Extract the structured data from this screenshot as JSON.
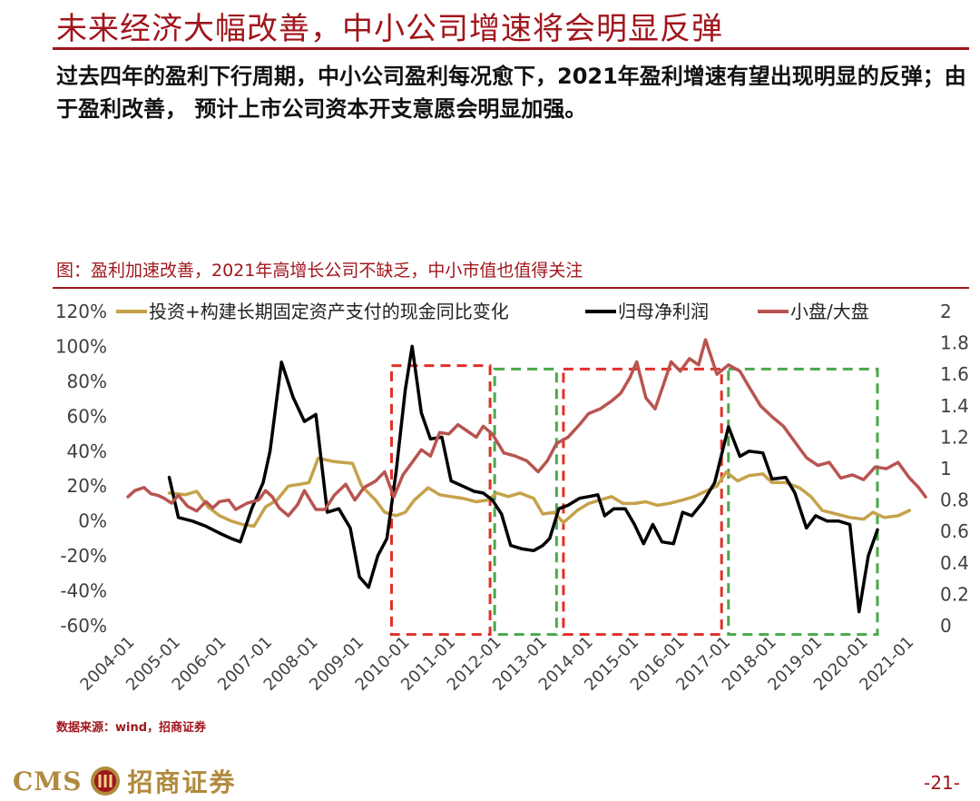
{
  "header": {
    "title": "未来经济大幅改善，中小公司增速将会明显反弹",
    "subtitle": "过去四年的盈利下行周期，中小公司盈利每况愈下，2021年盈利增速有望出现明显的反弹；由于盈利改善， 预计上市公司资本开支意愿会明显加强。"
  },
  "figure": {
    "title": "图：盈利加速改善，2021年高增长公司不缺乏，中小市值也值得关注"
  },
  "source": "数据来源：wind，招商证券",
  "footer": {
    "brand_latin": "CMS",
    "brand_name": "招商证券",
    "page": "-21-"
  },
  "colors": {
    "capex": "#c5a24a",
    "profit": "#000000",
    "ratio": "#b85450",
    "red_box": "#e03127",
    "green_box": "#4aa84a",
    "accent": "#a0161c"
  },
  "chart_data": {
    "type": "line",
    "x": [
      "2004-01",
      "2005-01",
      "2006-01",
      "2007-01",
      "2008-01",
      "2009-01",
      "2010-01",
      "2011-01",
      "2012-01",
      "2013-01",
      "2014-01",
      "2015-01",
      "2016-01",
      "2017-01",
      "2018-01",
      "2019-01",
      "2020-01",
      "2021-01"
    ],
    "y_left": {
      "range": [
        -60,
        120
      ],
      "ticks": [
        "120%",
        "100%",
        "80%",
        "60%",
        "40%",
        "20%",
        "0%",
        "-20%",
        "-40%",
        "-60%"
      ]
    },
    "y_right": {
      "range": [
        0,
        2
      ],
      "ticks": [
        "2",
        "1.8",
        "1.6",
        "1.4",
        "1.2",
        "1",
        "0.8",
        "0.6",
        "0.4",
        "0.2",
        "0"
      ]
    },
    "legend_position": "top",
    "series": [
      {
        "name": "投资+构建长期固定资产支付的现金同比变化",
        "axis": "left",
        "color": "#c5a24a",
        "points": [
          [
            2004.9,
            16
          ],
          [
            2005.25,
            15
          ],
          [
            2005.5,
            17
          ],
          [
            2005.75,
            8
          ],
          [
            2006.0,
            3
          ],
          [
            2006.25,
            0
          ],
          [
            2006.5,
            -2
          ],
          [
            2006.75,
            -3
          ],
          [
            2007.0,
            8
          ],
          [
            2007.25,
            12
          ],
          [
            2007.5,
            20
          ],
          [
            2007.75,
            21
          ],
          [
            2007.95,
            22
          ],
          [
            2008.15,
            36
          ],
          [
            2008.5,
            34
          ],
          [
            2008.9,
            33
          ],
          [
            2009.1,
            20
          ],
          [
            2009.4,
            12
          ],
          [
            2009.6,
            5
          ],
          [
            2009.85,
            3
          ],
          [
            2010.05,
            5
          ],
          [
            2010.25,
            12
          ],
          [
            2010.55,
            19
          ],
          [
            2010.8,
            15
          ],
          [
            2011.05,
            14
          ],
          [
            2011.3,
            13
          ],
          [
            2011.6,
            11
          ],
          [
            2011.85,
            12
          ],
          [
            2012.05,
            16
          ],
          [
            2012.3,
            14
          ],
          [
            2012.55,
            16
          ],
          [
            2012.85,
            13
          ],
          [
            2013.05,
            4
          ],
          [
            2013.3,
            5
          ],
          [
            2013.5,
            -1
          ],
          [
            2013.8,
            6
          ],
          [
            2014.05,
            10
          ],
          [
            2014.3,
            12
          ],
          [
            2014.55,
            14
          ],
          [
            2014.8,
            10
          ],
          [
            2015.05,
            10
          ],
          [
            2015.3,
            11
          ],
          [
            2015.55,
            9
          ],
          [
            2015.8,
            10
          ],
          [
            2016.1,
            12
          ],
          [
            2016.35,
            14
          ],
          [
            2016.6,
            17
          ],
          [
            2016.85,
            20
          ],
          [
            2017.05,
            28
          ],
          [
            2017.3,
            23
          ],
          [
            2017.55,
            26
          ],
          [
            2017.85,
            27
          ],
          [
            2018.05,
            22
          ],
          [
            2018.35,
            22
          ],
          [
            2018.65,
            19
          ],
          [
            2018.9,
            14
          ],
          [
            2019.15,
            6
          ],
          [
            2019.45,
            4
          ],
          [
            2019.75,
            2
          ],
          [
            2020.05,
            1
          ],
          [
            2020.25,
            5
          ],
          [
            2020.5,
            2
          ],
          [
            2020.8,
            3
          ],
          [
            2021.05,
            6
          ]
        ]
      },
      {
        "name": "归母净利润",
        "axis": "left",
        "color": "#000000",
        "points": [
          [
            2004.9,
            25
          ],
          [
            2005.1,
            2
          ],
          [
            2005.4,
            0
          ],
          [
            2005.7,
            -3
          ],
          [
            2006.0,
            -7
          ],
          [
            2006.25,
            -10
          ],
          [
            2006.45,
            -12
          ],
          [
            2006.7,
            7
          ],
          [
            2006.95,
            22
          ],
          [
            2007.1,
            40
          ],
          [
            2007.35,
            91
          ],
          [
            2007.6,
            71
          ],
          [
            2007.85,
            57
          ],
          [
            2008.1,
            61
          ],
          [
            2008.35,
            5
          ],
          [
            2008.6,
            7
          ],
          [
            2008.85,
            -4
          ],
          [
            2009.05,
            -32
          ],
          [
            2009.25,
            -38
          ],
          [
            2009.45,
            -20
          ],
          [
            2009.65,
            -10
          ],
          [
            2009.85,
            28
          ],
          [
            2010.05,
            75
          ],
          [
            2010.2,
            100
          ],
          [
            2010.4,
            62
          ],
          [
            2010.6,
            47
          ],
          [
            2010.85,
            48
          ],
          [
            2011.05,
            23
          ],
          [
            2011.3,
            20
          ],
          [
            2011.55,
            17
          ],
          [
            2011.75,
            16
          ],
          [
            2011.95,
            12
          ],
          [
            2012.15,
            4
          ],
          [
            2012.35,
            -14
          ],
          [
            2012.6,
            -16
          ],
          [
            2012.85,
            -17
          ],
          [
            2013.05,
            -14
          ],
          [
            2013.2,
            -10
          ],
          [
            2013.4,
            7
          ],
          [
            2013.6,
            9
          ],
          [
            2013.85,
            13
          ],
          [
            2014.05,
            14
          ],
          [
            2014.25,
            15
          ],
          [
            2014.4,
            3
          ],
          [
            2014.6,
            7
          ],
          [
            2014.85,
            7
          ],
          [
            2015.05,
            -2
          ],
          [
            2015.25,
            -13
          ],
          [
            2015.45,
            -2
          ],
          [
            2015.65,
            -12
          ],
          [
            2015.9,
            -13
          ],
          [
            2016.1,
            5
          ],
          [
            2016.3,
            3
          ],
          [
            2016.55,
            11
          ],
          [
            2016.8,
            22
          ],
          [
            2017.1,
            54
          ],
          [
            2017.35,
            37
          ],
          [
            2017.55,
            40
          ],
          [
            2017.85,
            39
          ],
          [
            2018.05,
            24
          ],
          [
            2018.35,
            25
          ],
          [
            2018.55,
            16
          ],
          [
            2018.8,
            -4
          ],
          [
            2019.0,
            3
          ],
          [
            2019.25,
            0
          ],
          [
            2019.5,
            0
          ],
          [
            2019.75,
            -2
          ],
          [
            2019.95,
            -52
          ],
          [
            2020.15,
            -20
          ],
          [
            2020.35,
            -5
          ]
        ]
      },
      {
        "name": "小盘/大盘",
        "axis": "right",
        "color": "#b85450",
        "points": [
          [
            2004.0,
            0.82
          ],
          [
            2004.15,
            0.86
          ],
          [
            2004.35,
            0.88
          ],
          [
            2004.5,
            0.84
          ],
          [
            2004.65,
            0.83
          ],
          [
            2004.8,
            0.81
          ],
          [
            2004.95,
            0.78
          ],
          [
            2005.1,
            0.83
          ],
          [
            2005.3,
            0.76
          ],
          [
            2005.5,
            0.73
          ],
          [
            2005.7,
            0.79
          ],
          [
            2005.85,
            0.75
          ],
          [
            2006.0,
            0.79
          ],
          [
            2006.2,
            0.8
          ],
          [
            2006.35,
            0.74
          ],
          [
            2006.6,
            0.78
          ],
          [
            2006.85,
            0.8
          ],
          [
            2007.0,
            0.86
          ],
          [
            2007.15,
            0.82
          ],
          [
            2007.3,
            0.75
          ],
          [
            2007.5,
            0.7
          ],
          [
            2007.7,
            0.77
          ],
          [
            2007.85,
            0.86
          ],
          [
            2008.1,
            0.74
          ],
          [
            2008.3,
            0.74
          ],
          [
            2008.5,
            0.83
          ],
          [
            2008.75,
            0.9
          ],
          [
            2008.95,
            0.8
          ],
          [
            2009.15,
            0.88
          ],
          [
            2009.4,
            0.92
          ],
          [
            2009.6,
            0.98
          ],
          [
            2009.8,
            0.82
          ],
          [
            2010.0,
            0.96
          ],
          [
            2010.2,
            1.04
          ],
          [
            2010.4,
            1.12
          ],
          [
            2010.6,
            1.08
          ],
          [
            2010.8,
            1.23
          ],
          [
            2011.0,
            1.22
          ],
          [
            2011.2,
            1.28
          ],
          [
            2011.4,
            1.24
          ],
          [
            2011.6,
            1.2
          ],
          [
            2011.75,
            1.27
          ],
          [
            2011.95,
            1.22
          ],
          [
            2012.2,
            1.1
          ],
          [
            2012.45,
            1.08
          ],
          [
            2012.7,
            1.05
          ],
          [
            2012.95,
            0.98
          ],
          [
            2013.15,
            1.05
          ],
          [
            2013.35,
            1.16
          ],
          [
            2013.6,
            1.2
          ],
          [
            2013.85,
            1.28
          ],
          [
            2014.05,
            1.35
          ],
          [
            2014.3,
            1.38
          ],
          [
            2014.55,
            1.43
          ],
          [
            2014.75,
            1.48
          ],
          [
            2014.95,
            1.58
          ],
          [
            2015.1,
            1.68
          ],
          [
            2015.3,
            1.45
          ],
          [
            2015.5,
            1.38
          ],
          [
            2015.7,
            1.55
          ],
          [
            2015.85,
            1.68
          ],
          [
            2016.05,
            1.62
          ],
          [
            2016.25,
            1.7
          ],
          [
            2016.45,
            1.66
          ],
          [
            2016.6,
            1.82
          ],
          [
            2016.85,
            1.6
          ],
          [
            2017.1,
            1.66
          ],
          [
            2017.35,
            1.62
          ],
          [
            2017.55,
            1.52
          ],
          [
            2017.8,
            1.4
          ],
          [
            2018.05,
            1.33
          ],
          [
            2018.3,
            1.27
          ],
          [
            2018.55,
            1.17
          ],
          [
            2018.8,
            1.07
          ],
          [
            2019.05,
            1.02
          ],
          [
            2019.3,
            1.04
          ],
          [
            2019.55,
            0.94
          ],
          [
            2019.8,
            0.96
          ],
          [
            2020.05,
            0.93
          ],
          [
            2020.3,
            1.01
          ],
          [
            2020.55,
            1.0
          ],
          [
            2020.8,
            1.04
          ],
          [
            2021.05,
            0.94
          ],
          [
            2021.25,
            0.88
          ],
          [
            2021.4,
            0.82
          ]
        ]
      }
    ],
    "annotations": [
      {
        "type": "dashed-box",
        "color": "red",
        "x_range": [
          2009.75,
          2011.9
        ],
        "y_range": [
          -65,
          89
        ]
      },
      {
        "type": "dashed-box",
        "color": "green",
        "x_range": [
          2012.0,
          2013.35
        ],
        "y_range": [
          -65,
          87
        ]
      },
      {
        "type": "dashed-box",
        "color": "red",
        "x_range": [
          2013.5,
          2016.95
        ],
        "y_range": [
          -65,
          87
        ]
      },
      {
        "type": "dashed-box",
        "color": "green",
        "x_range": [
          2017.1,
          2020.35
        ],
        "y_range": [
          -65,
          87
        ]
      }
    ]
  }
}
